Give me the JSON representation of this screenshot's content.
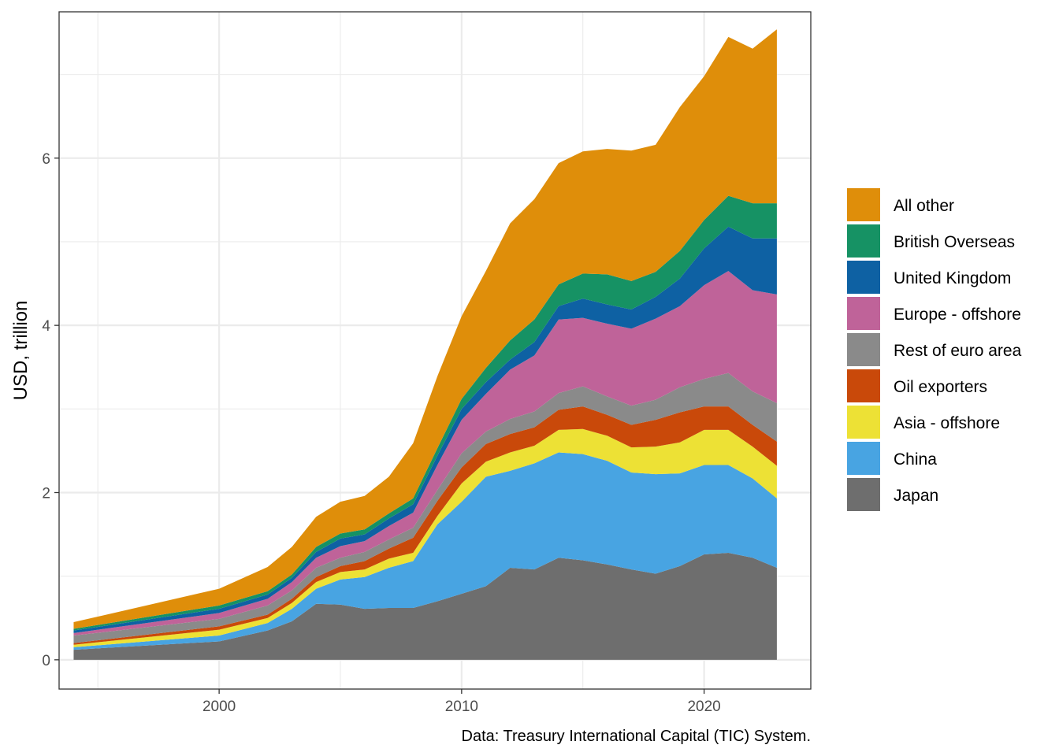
{
  "chart_data": {
    "type": "area",
    "stacked": true,
    "title": "",
    "xlabel": "",
    "ylabel": "USD, trillion",
    "caption": "Data: Treasury International Capital (TIC) System.",
    "xlim": [
      1993.4,
      2024.4
    ],
    "ylim": [
      -0.35,
      7.75
    ],
    "x_ticks": [
      2000,
      2010,
      2020
    ],
    "y_ticks": [
      0,
      2,
      4,
      6
    ],
    "grid": true,
    "legend_position": "right",
    "x": [
      1994,
      2000,
      2002,
      2003,
      2004,
      2005,
      2006,
      2007,
      2008,
      2009,
      2010,
      2011,
      2012,
      2013,
      2014,
      2015,
      2016,
      2017,
      2018,
      2019,
      2020,
      2021,
      2022,
      2023
    ],
    "series": [
      {
        "name": "Japan",
        "color": "#6e6e6e",
        "values": [
          0.12,
          0.22,
          0.35,
          0.46,
          0.67,
          0.66,
          0.61,
          0.62,
          0.62,
          0.7,
          0.79,
          0.88,
          1.1,
          1.08,
          1.22,
          1.19,
          1.14,
          1.08,
          1.03,
          1.12,
          1.26,
          1.28,
          1.22,
          1.1
        ]
      },
      {
        "name": "China",
        "color": "#48a4e2",
        "values": [
          0.03,
          0.07,
          0.09,
          0.15,
          0.18,
          0.3,
          0.38,
          0.48,
          0.56,
          0.92,
          1.1,
          1.31,
          1.16,
          1.27,
          1.26,
          1.27,
          1.24,
          1.16,
          1.19,
          1.11,
          1.07,
          1.05,
          0.95,
          0.83
        ]
      },
      {
        "name": "Asia - offshore",
        "color": "#ede135",
        "values": [
          0.03,
          0.07,
          0.06,
          0.07,
          0.08,
          0.09,
          0.09,
          0.11,
          0.1,
          0.1,
          0.22,
          0.18,
          0.22,
          0.21,
          0.27,
          0.3,
          0.3,
          0.3,
          0.33,
          0.37,
          0.42,
          0.42,
          0.38,
          0.39
        ]
      },
      {
        "name": "Oil exporters",
        "color": "#c9490a",
        "values": [
          0.02,
          0.04,
          0.04,
          0.05,
          0.06,
          0.07,
          0.1,
          0.12,
          0.18,
          0.18,
          0.19,
          0.21,
          0.22,
          0.22,
          0.24,
          0.27,
          0.25,
          0.27,
          0.32,
          0.36,
          0.28,
          0.28,
          0.26,
          0.29
        ]
      },
      {
        "name": "Rest of euro area",
        "color": "#8a8a8a",
        "values": [
          0.09,
          0.09,
          0.11,
          0.1,
          0.11,
          0.1,
          0.11,
          0.11,
          0.12,
          0.13,
          0.17,
          0.15,
          0.18,
          0.19,
          0.2,
          0.24,
          0.22,
          0.23,
          0.24,
          0.3,
          0.33,
          0.4,
          0.4,
          0.46
        ]
      },
      {
        "name": "Europe - offshore",
        "color": "#bf6399",
        "values": [
          0.03,
          0.07,
          0.08,
          0.1,
          0.12,
          0.14,
          0.13,
          0.16,
          0.18,
          0.3,
          0.4,
          0.45,
          0.59,
          0.67,
          0.88,
          0.82,
          0.87,
          0.92,
          0.97,
          0.97,
          1.12,
          1.22,
          1.21,
          1.3
        ]
      },
      {
        "name": "United Kingdom",
        "color": "#0e61a3",
        "values": [
          0.03,
          0.05,
          0.05,
          0.05,
          0.07,
          0.09,
          0.08,
          0.09,
          0.1,
          0.11,
          0.13,
          0.14,
          0.12,
          0.16,
          0.16,
          0.23,
          0.23,
          0.23,
          0.26,
          0.33,
          0.44,
          0.53,
          0.62,
          0.67
        ]
      },
      {
        "name": "British Overseas",
        "color": "#169264",
        "values": [
          0.02,
          0.04,
          0.04,
          0.04,
          0.06,
          0.06,
          0.06,
          0.06,
          0.07,
          0.09,
          0.12,
          0.17,
          0.23,
          0.27,
          0.26,
          0.3,
          0.36,
          0.34,
          0.3,
          0.33,
          0.34,
          0.37,
          0.42,
          0.42
        ]
      },
      {
        "name": "All other",
        "color": "#df8e0a",
        "values": [
          0.08,
          0.2,
          0.29,
          0.33,
          0.36,
          0.38,
          0.4,
          0.44,
          0.66,
          0.86,
          0.99,
          1.16,
          1.4,
          1.44,
          1.45,
          1.46,
          1.5,
          1.56,
          1.52,
          1.72,
          1.72,
          1.9,
          1.85,
          2.08
        ]
      }
    ]
  }
}
